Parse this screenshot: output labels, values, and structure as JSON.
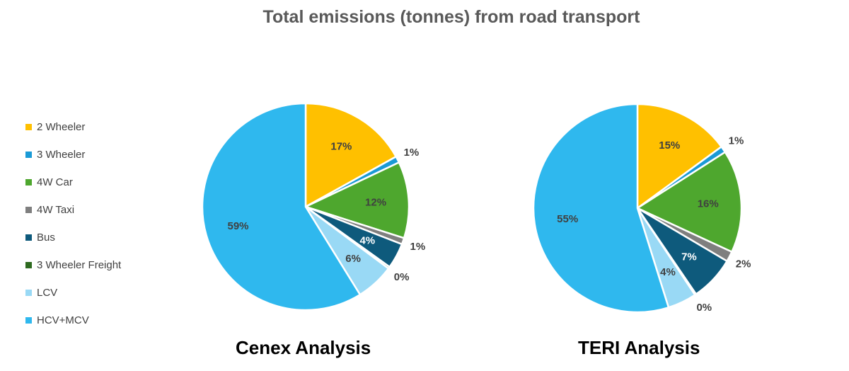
{
  "chart_data": [
    {
      "type": "pie",
      "title": "Cenex Analysis",
      "categories": [
        "2 Wheeler",
        "3 Wheeler",
        "4W Car",
        "4W Taxi",
        "Bus",
        "3 Wheeler Freight",
        "LCV",
        "HCV+MCV"
      ],
      "values": [
        17,
        1,
        12,
        1,
        4,
        0.3,
        6,
        59
      ],
      "labels": [
        "17%",
        "1%",
        "12%",
        "1%",
        "4%",
        "0%",
        "6%",
        "59%"
      ]
    },
    {
      "type": "pie",
      "title": "TERI Analysis",
      "categories": [
        "2 Wheeler",
        "3 Wheeler",
        "4W Car",
        "4W Taxi",
        "Bus",
        "3 Wheeler Freight",
        "LCV",
        "HCV+MCV"
      ],
      "values": [
        15,
        1,
        16,
        1.6,
        7,
        0.2,
        4.5,
        55
      ],
      "labels": [
        "15%",
        "1%",
        "16%",
        "2%",
        "7%",
        "0%",
        "4%",
        "55%"
      ]
    }
  ],
  "title": "Total emissions (tonnes) from road transport",
  "legend": {
    "placement": "left",
    "items": [
      {
        "label": "2 Wheeler",
        "color": "#FFC000"
      },
      {
        "label": "3 Wheeler",
        "color": "#1A9AD6"
      },
      {
        "label": "4W Car",
        "color": "#4EA72E"
      },
      {
        "label": "4W Taxi",
        "color": "#7F7F7F"
      },
      {
        "label": "Bus",
        "color": "#0E5A7C"
      },
      {
        "label": "3 Wheeler Freight",
        "color": "#2D6A1F"
      },
      {
        "label": "LCV",
        "color": "#99D9F5"
      },
      {
        "label": "HCV+MCV",
        "color": "#2FB8EE"
      }
    ]
  }
}
